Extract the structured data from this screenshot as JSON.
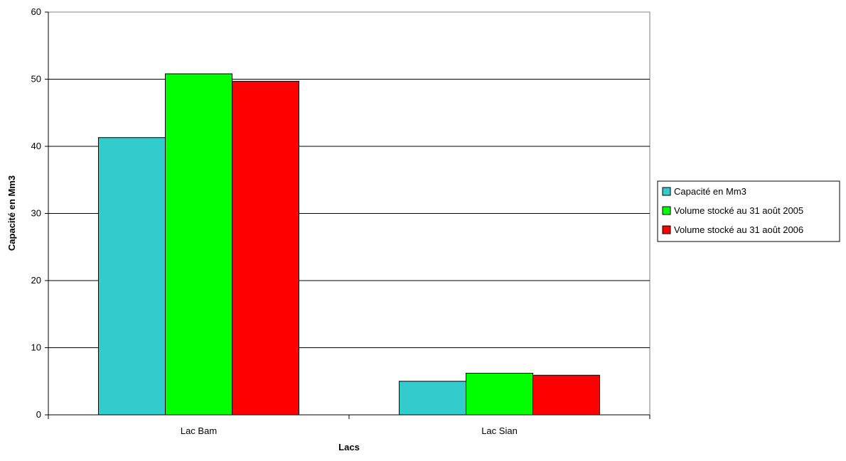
{
  "chart_data": {
    "type": "bar",
    "title": "",
    "xlabel": "Lacs",
    "ylabel": "Capacité en Mm3",
    "categories": [
      "Lac Bam",
      "Lac Sian"
    ],
    "series": [
      {
        "name": "Capacité en Mm3",
        "color": "#33CCCC",
        "values": [
          41.3,
          5.0
        ]
      },
      {
        "name": "Volume stocké au 31 août 2005",
        "color": "#00FF00",
        "values": [
          50.8,
          6.2
        ]
      },
      {
        "name": "Volume stocké au 31 août 2006",
        "color": "#FF0000",
        "values": [
          49.7,
          5.9
        ]
      }
    ],
    "ylim": [
      0,
      60
    ],
    "yticks": [
      "0",
      "10",
      "20",
      "30",
      "40",
      "50",
      "60"
    ],
    "grid": true,
    "legend_position": "right"
  }
}
